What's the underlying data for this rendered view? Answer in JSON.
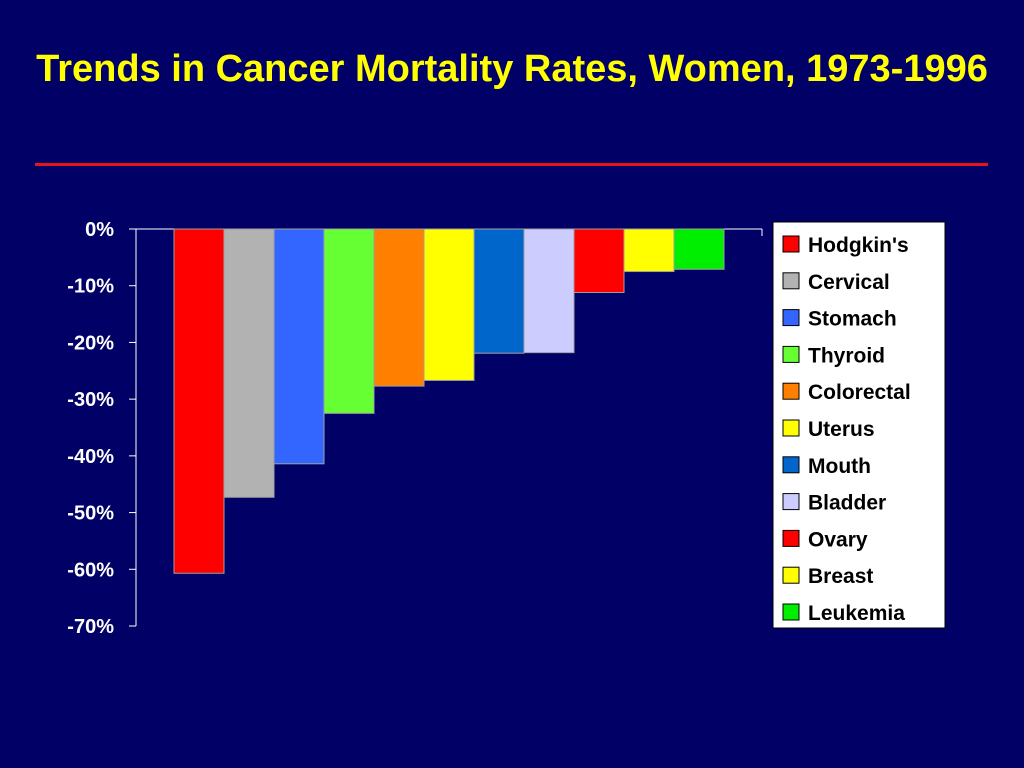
{
  "slide": {
    "title": "Trends in Cancer Mortality Rates, Women, 1973-1996"
  },
  "chart_data": {
    "type": "bar",
    "title": "Trends in Cancer Mortality Rates, Women, 1973-1996",
    "xlabel": "",
    "ylabel": "",
    "ylim": [
      -70,
      0
    ],
    "yticks": [
      0,
      -10,
      -20,
      -30,
      -40,
      -50,
      -60,
      -70
    ],
    "ytick_labels": [
      "0%",
      "-10%",
      "-20%",
      "-30%",
      "-40%",
      "-50%",
      "-60%",
      "-70%"
    ],
    "grid": false,
    "legend_position": "right",
    "categories": [
      "Hodgkin's",
      "Cervical",
      "Stomach",
      "Thyroid",
      "Colorectal",
      "Uterus",
      "Mouth",
      "Bladder",
      "Ovary",
      "Breast",
      "Leukemia"
    ],
    "values": [
      -60.7,
      -47.3,
      -41.4,
      -32.5,
      -27.7,
      -26.7,
      -21.9,
      -21.8,
      -11.2,
      -7.5,
      -7.1
    ],
    "colors": [
      "#ff0000",
      "#b2b2b2",
      "#3366ff",
      "#66ff33",
      "#ff8000",
      "#ffff00",
      "#0066cc",
      "#ccccff",
      "#ff0000",
      "#ffff00",
      "#00ee00"
    ]
  }
}
